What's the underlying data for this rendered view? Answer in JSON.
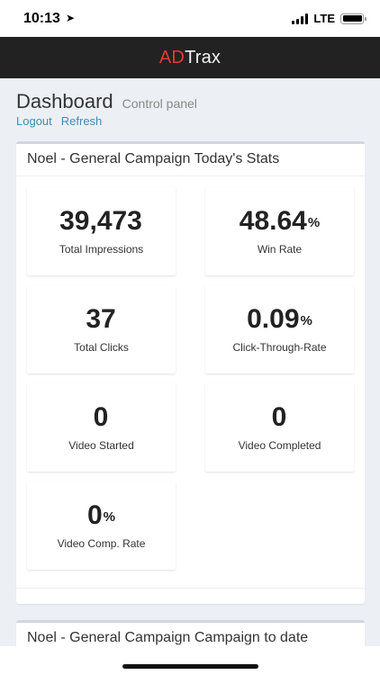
{
  "status_bar": {
    "time": "10:13",
    "network": "LTE"
  },
  "header": {
    "logo_part1": "AD",
    "logo_part2": "Trax"
  },
  "page": {
    "title": "Dashboard",
    "subtitle": "Control panel",
    "links": {
      "logout": "Logout",
      "refresh": "Refresh"
    }
  },
  "today_box": {
    "title": "Noel - General Campaign Today's Stats",
    "stats": [
      {
        "value": "39,473",
        "suffix": "",
        "label": "Total Impressions"
      },
      {
        "value": "48.64",
        "suffix": "%",
        "label": "Win Rate"
      },
      {
        "value": "37",
        "suffix": "",
        "label": "Total Clicks"
      },
      {
        "value": "0.09",
        "suffix": "%",
        "label": "Click-Through-Rate"
      },
      {
        "value": "0",
        "suffix": "",
        "label": "Video Started"
      },
      {
        "value": "0",
        "suffix": "",
        "label": "Video Completed"
      },
      {
        "value": "0",
        "suffix": "%",
        "label": "Video Comp. Rate"
      }
    ]
  },
  "to_date_box": {
    "title": "Noel - General Campaign Campaign to date"
  },
  "colors": {
    "header_bg": "#222222",
    "logo_accent": "#e53935",
    "link": "#3c8dbc",
    "content_bg": "#ecf0f5"
  }
}
